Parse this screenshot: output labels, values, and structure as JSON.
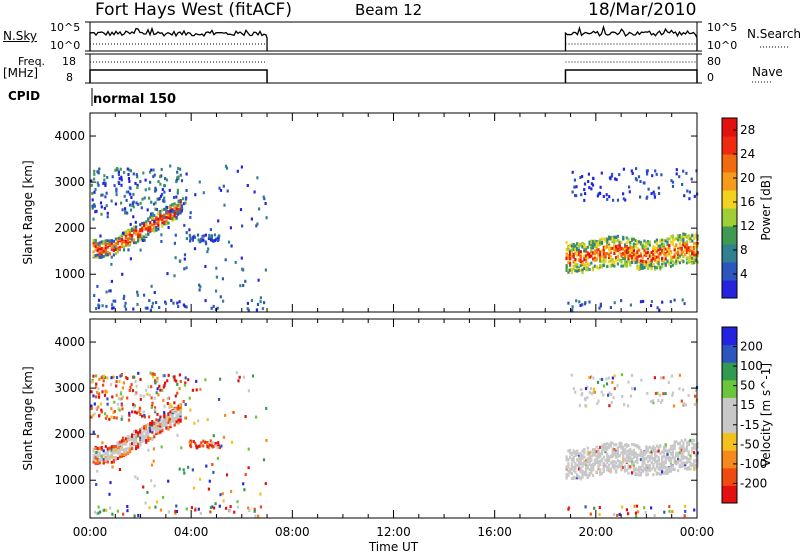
{
  "header": {
    "station": "Fort Hays West (fitACF)",
    "beam": "Beam 12",
    "date": "18/Mar/2010"
  },
  "panels_text": {
    "nsky_label": "N.Sky",
    "nsky_top": "10^5",
    "nsky_bottom": "10^0",
    "nsearch_label": "N.Search",
    "nsearch_top": "10^5",
    "nsearch_bottom": "10^0",
    "freq_label_1": "Freq.",
    "freq_label_2": "[MHz]",
    "freq_top": "18",
    "freq_bottom": "8",
    "nave_label": "Nave",
    "nave_top": "80",
    "nave_bottom": "0",
    "cpid_label": "CPID",
    "cpid_value": "normal 150"
  },
  "colors": {
    "power": [
      "#2424e0",
      "#2c55c0",
      "#31808f",
      "#3e9a52",
      "#9ed035",
      "#f2d21f",
      "#f59a1a",
      "#f26a10",
      "#ee2a10",
      "#e31010"
    ],
    "velocity": [
      "#e31010",
      "#f04a10",
      "#f7891c",
      "#f2c11e",
      "#c8c8c8",
      "#c8c8c8",
      "#6cc63c",
      "#2f9a50",
      "#2c55c0",
      "#2424e0"
    ]
  },
  "chart_data": [
    {
      "type": "heatmap",
      "title": "",
      "xlabel": "",
      "ylabel": "Slant Range [km]",
      "x_ticks": [
        "00:00",
        "04:00",
        "08:00",
        "12:00",
        "16:00",
        "20:00",
        "00:00"
      ],
      "x_range_hours": [
        0,
        24
      ],
      "y_ticks": [
        1000,
        2000,
        3000,
        4000
      ],
      "ylim": [
        180,
        4500
      ],
      "colorbar_label": "Power [dB]",
      "colorbar_ticks": [
        4,
        8,
        12,
        16,
        20,
        24,
        28
      ],
      "colorbar_range": [
        0,
        30
      ],
      "data_intervals_hours": [
        [
          0,
          7
        ],
        [
          18.8,
          24
        ]
      ]
    },
    {
      "type": "heatmap",
      "title": "",
      "xlabel": "Time UT",
      "ylabel": "Slant Range [km]",
      "x_ticks": [
        "00:00",
        "04:00",
        "08:00",
        "12:00",
        "16:00",
        "20:00",
        "00:00"
      ],
      "x_range_hours": [
        0,
        24
      ],
      "y_ticks": [
        1000,
        2000,
        3000,
        4000
      ],
      "ylim": [
        180,
        4500
      ],
      "colorbar_label": "Velocity [m s^-1]",
      "colorbar_ticks": [
        200,
        100,
        50,
        15,
        -15,
        -50,
        -100,
        -200
      ],
      "data_intervals_hours": [
        [
          0,
          7
        ],
        [
          18.8,
          24
        ]
      ]
    }
  ]
}
